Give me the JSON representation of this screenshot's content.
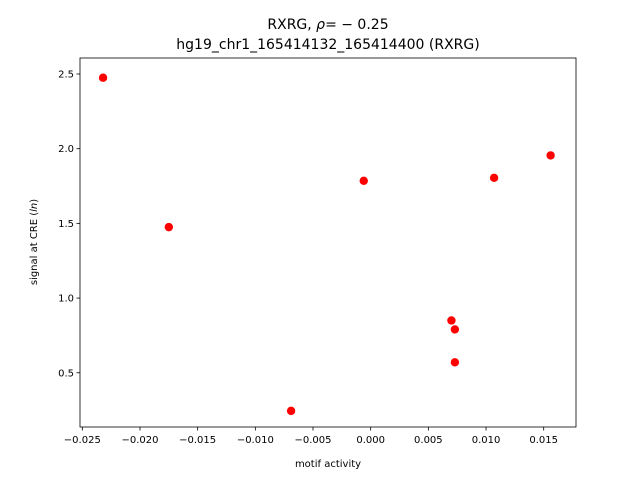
{
  "chart_data": {
    "type": "scatter",
    "title_line1_prefix": "RXRG, ",
    "title_rho_symbol": "ρ",
    "title_rho_value": "= − 0.25",
    "title_line2": "hg19_chr1_165414132_165414400 (RXRG)",
    "xlabel": "motif activity",
    "ylabel_prefix": "signal at CRE (",
    "ylabel_italic": "ln",
    "ylabel_suffix": ")",
    "xlim": [
      -0.0252,
      0.0178
    ],
    "ylim": [
      0.137,
      2.607
    ],
    "x_ticks": [
      {
        "value": -0.025,
        "label": "−0.025"
      },
      {
        "value": -0.02,
        "label": "−0.020"
      },
      {
        "value": -0.015,
        "label": "−0.015"
      },
      {
        "value": -0.01,
        "label": "−0.010"
      },
      {
        "value": -0.005,
        "label": "−0.005"
      },
      {
        "value": 0.0,
        "label": "0.000"
      },
      {
        "value": 0.005,
        "label": "0.005"
      },
      {
        "value": 0.01,
        "label": "0.010"
      },
      {
        "value": 0.015,
        "label": "0.015"
      }
    ],
    "y_ticks": [
      {
        "value": 0.5,
        "label": "0.5"
      },
      {
        "value": 1.0,
        "label": "1.0"
      },
      {
        "value": 1.5,
        "label": "1.5"
      },
      {
        "value": 2.0,
        "label": "2.0"
      },
      {
        "value": 2.5,
        "label": "2.5"
      }
    ],
    "marker_color": "#ff0000",
    "points": [
      {
        "x": -0.0232,
        "y": 2.475
      },
      {
        "x": -0.0175,
        "y": 1.475
      },
      {
        "x": -0.0069,
        "y": 0.245
      },
      {
        "x": -0.0006,
        "y": 1.785
      },
      {
        "x": 0.007,
        "y": 0.85
      },
      {
        "x": 0.0073,
        "y": 0.79
      },
      {
        "x": 0.0073,
        "y": 0.57
      },
      {
        "x": 0.0107,
        "y": 1.805
      },
      {
        "x": 0.0156,
        "y": 1.955
      }
    ]
  }
}
